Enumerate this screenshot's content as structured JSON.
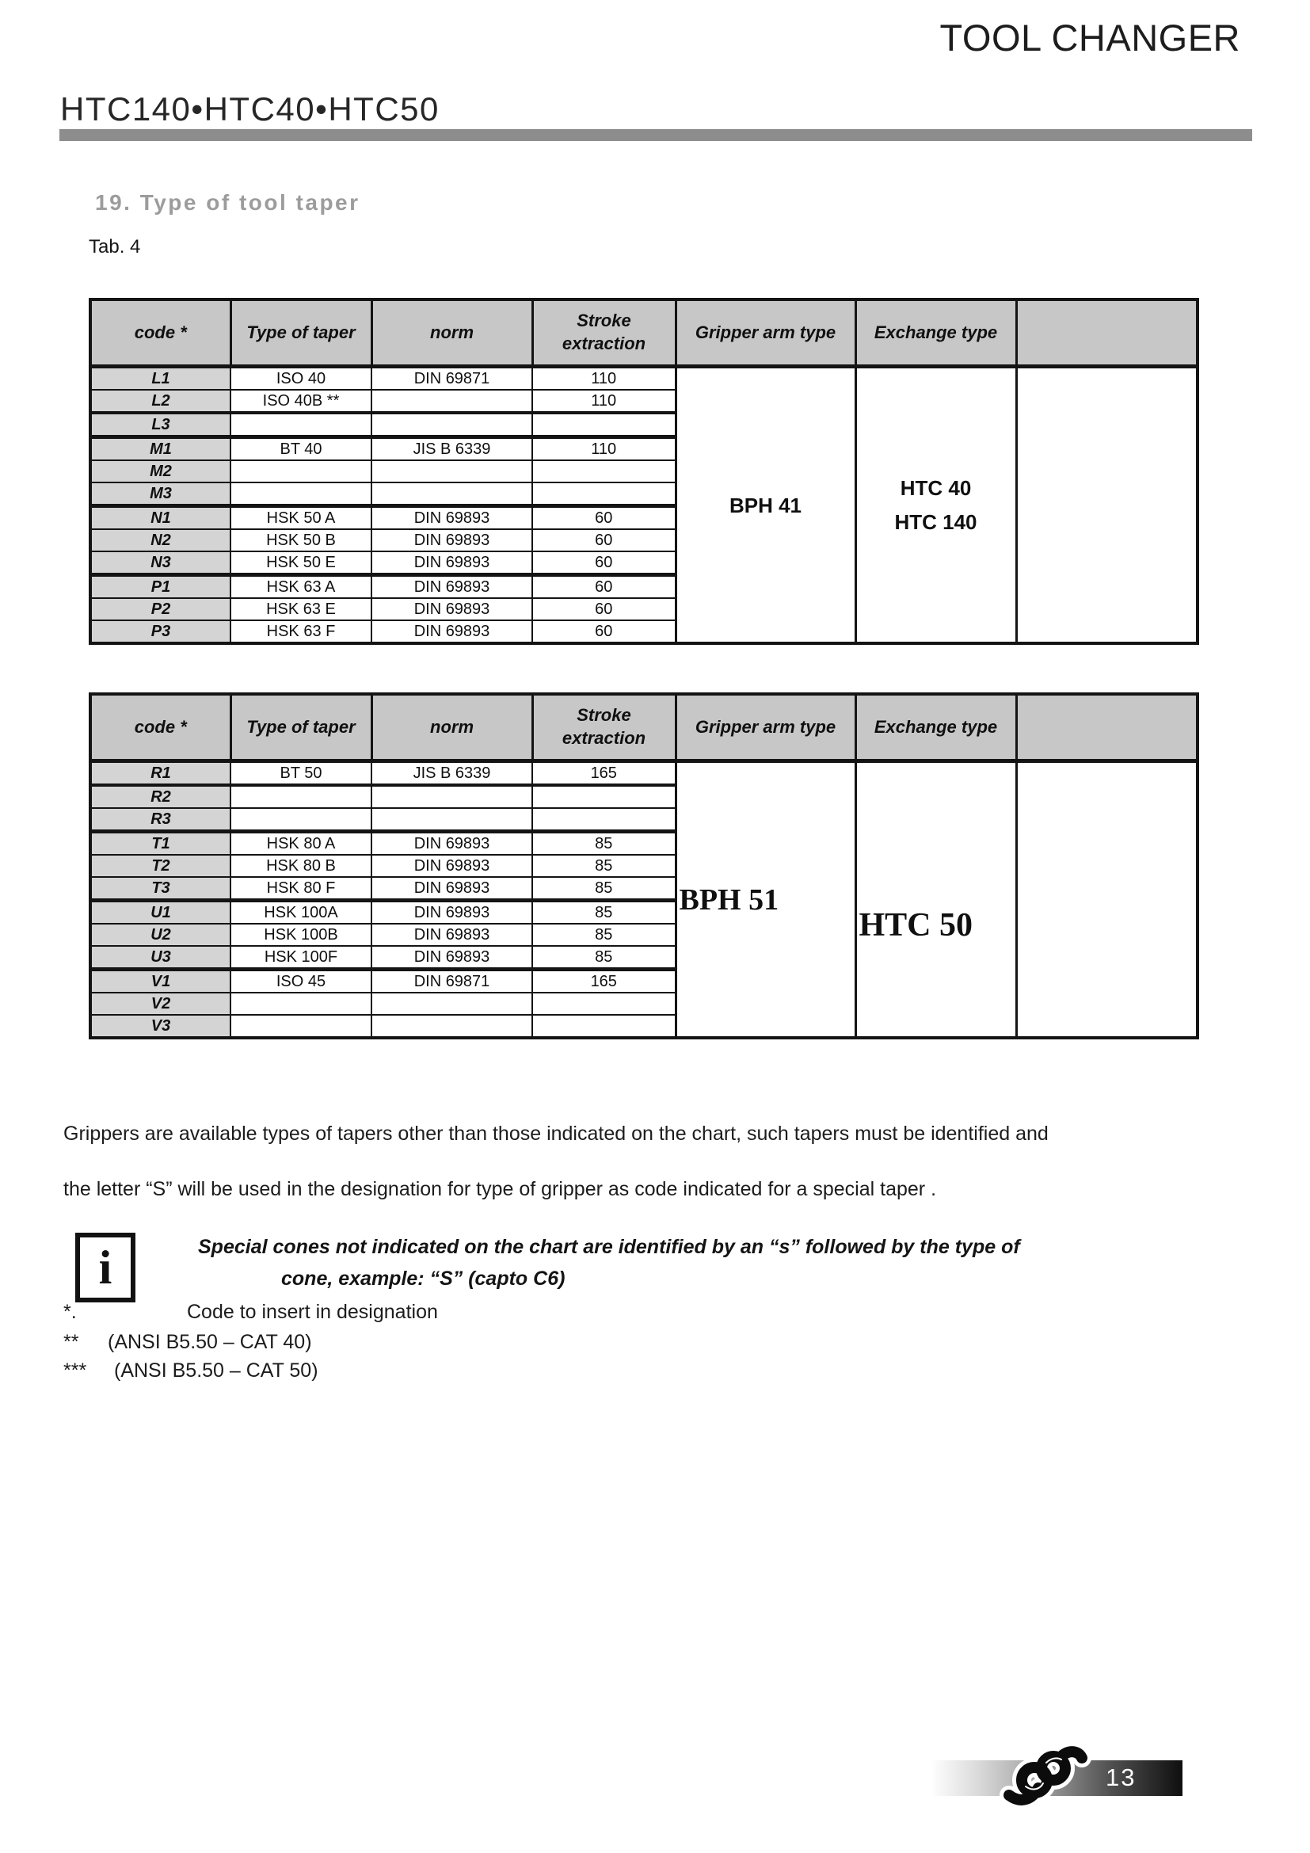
{
  "page": {
    "title": "TOOL CHANGER",
    "models": "HTC140•HTC40•HTC50",
    "section_heading": "19. Type of tool taper",
    "table_label": "Tab. 4"
  },
  "tables": [
    {
      "headers": [
        "code *",
        "Type of taper",
        "norm",
        "Stroke extraction",
        "Gripper arm type",
        "Exchange type",
        ""
      ],
      "gripper_arm_type": "BPH 41",
      "exchange_type": [
        "HTC 40",
        "HTC 140"
      ],
      "serif_style": false,
      "rows": [
        {
          "code": "L1",
          "taper": "ISO 40",
          "norm": "DIN 69871",
          "stroke": "110"
        },
        {
          "code": "L2",
          "taper": "ISO 40B **",
          "norm": "",
          "stroke": "110",
          "heavy_bottom": true
        },
        {
          "code": "L3",
          "taper": "",
          "norm": "",
          "stroke": ""
        },
        {
          "code": "M1",
          "taper": "BT 40",
          "norm": "JIS B 6339",
          "stroke": "110"
        },
        {
          "code": "M2",
          "taper": "",
          "norm": "",
          "stroke": ""
        },
        {
          "code": "M3",
          "taper": "",
          "norm": "",
          "stroke": ""
        },
        {
          "code": "N1",
          "taper": "HSK 50 A",
          "norm": "DIN 69893",
          "stroke": "60"
        },
        {
          "code": "N2",
          "taper": "HSK 50 B",
          "norm": "DIN 69893",
          "stroke": "60"
        },
        {
          "code": "N3",
          "taper": "HSK 50 E",
          "norm": "DIN 69893",
          "stroke": "60"
        },
        {
          "code": "P1",
          "taper": "HSK 63 A",
          "norm": "DIN 69893",
          "stroke": "60"
        },
        {
          "code": "P2",
          "taper": "HSK 63 E",
          "norm": "DIN 69893",
          "stroke": "60"
        },
        {
          "code": "P3",
          "taper": "HSK 63 F",
          "norm": "DIN 69893",
          "stroke": "60"
        }
      ]
    },
    {
      "headers": [
        "code *",
        "Type of taper",
        "norm",
        "Stroke extraction",
        "Gripper arm type",
        "Exchange type",
        ""
      ],
      "gripper_arm_type": "BPH 51",
      "exchange_type": [
        "HTC 50"
      ],
      "serif_style": true,
      "rows": [
        {
          "code": "R1",
          "taper": "BT 50",
          "norm": "JIS B 6339",
          "stroke": "165",
          "heavy_bottom": true
        },
        {
          "code": "R2",
          "taper": "",
          "norm": "",
          "stroke": ""
        },
        {
          "code": "R3",
          "taper": "",
          "norm": "",
          "stroke": ""
        },
        {
          "code": "T1",
          "taper": "HSK 80 A",
          "norm": "DIN 69893",
          "stroke": "85"
        },
        {
          "code": "T2",
          "taper": "HSK 80 B",
          "norm": "DIN 69893",
          "stroke": "85"
        },
        {
          "code": "T3",
          "taper": "HSK 80 F",
          "norm": "DIN 69893",
          "stroke": "85"
        },
        {
          "code": "U1",
          "taper": "HSK 100A",
          "norm": "DIN 69893",
          "stroke": "85"
        },
        {
          "code": "U2",
          "taper": "HSK 100B",
          "norm": "DIN 69893",
          "stroke": "85"
        },
        {
          "code": "U3",
          "taper": "HSK 100F",
          "norm": "DIN 69893",
          "stroke": "85"
        },
        {
          "code": "V1",
          "taper": "ISO 45",
          "norm": "DIN 69871",
          "stroke": "165"
        },
        {
          "code": "V2",
          "taper": "",
          "norm": "",
          "stroke": ""
        },
        {
          "code": "V3",
          "taper": "",
          "norm": "",
          "stroke": ""
        }
      ]
    }
  ],
  "paragraph": {
    "line1": "Grippers are available  types of tapers other than those indicated on the chart, such tapers must be identified and",
    "line2": "the letter “S” will be used in the designation for type of gripper  as code indicated for a special taper ."
  },
  "note": {
    "icon_glyph": "i",
    "line1": "Special cones not indicated on the chart are identified by an “s” followed by the type of",
    "line2": "cone, example:  “S” (capto C6)"
  },
  "footnotes": [
    {
      "marker": "*.",
      "text": "Code to insert in designation"
    },
    {
      "marker": "**",
      "text": "(ANSI B5.50 – CAT 40)"
    },
    {
      "marker": "***",
      "text": "(ANSI B5.50 – CAT 50)"
    }
  ],
  "footer": {
    "page_number": "13"
  }
}
